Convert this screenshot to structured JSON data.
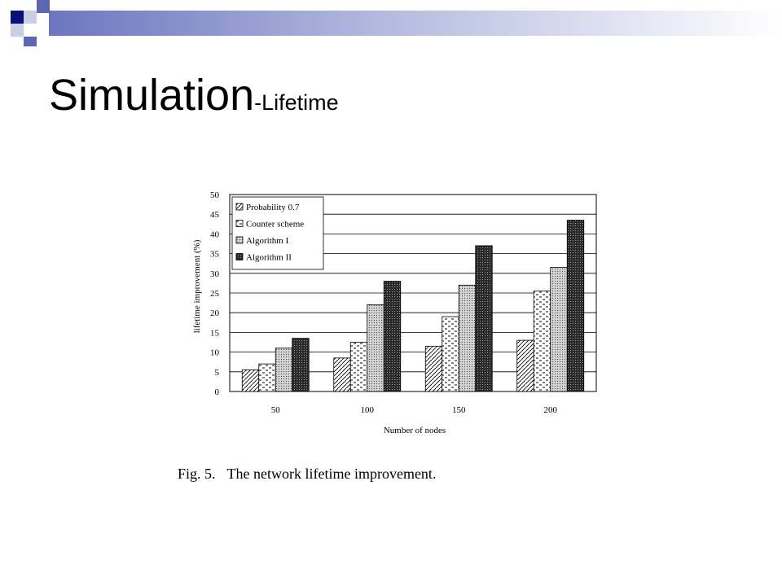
{
  "slide": {
    "title_main": "Simulation",
    "title_sub": "-Lifetime",
    "caption_label": "Fig. 5.",
    "caption_text": "The network lifetime improvement."
  },
  "colors": {
    "deco_navy": "#0a0f7a",
    "deco_blue": "#5b67b5",
    "deco_light": "#c9cde6"
  },
  "chart_data": {
    "type": "bar",
    "xlabel": "Number of nodes",
    "ylabel": "lifetime improvement (%)",
    "ylim": [
      0,
      50
    ],
    "yticks": [
      0,
      5,
      10,
      15,
      20,
      25,
      30,
      35,
      40,
      45,
      50
    ],
    "categories": [
      "50",
      "100",
      "150",
      "200"
    ],
    "grid": "horizontal",
    "legend_position": "top-left",
    "series": [
      {
        "name": "Probability 0.7",
        "pattern": "diagonal-hatch",
        "values": [
          5.5,
          8.5,
          11.5,
          13
        ]
      },
      {
        "name": "Counter scheme",
        "pattern": "dashes",
        "values": [
          7,
          12.5,
          19,
          25.5
        ]
      },
      {
        "name": "Algorithm I",
        "pattern": "light-dots",
        "values": [
          11,
          22,
          27,
          31.5
        ]
      },
      {
        "name": "Algorithm II",
        "pattern": "dark-dots",
        "values": [
          13.5,
          28,
          37,
          43.5
        ]
      }
    ]
  }
}
